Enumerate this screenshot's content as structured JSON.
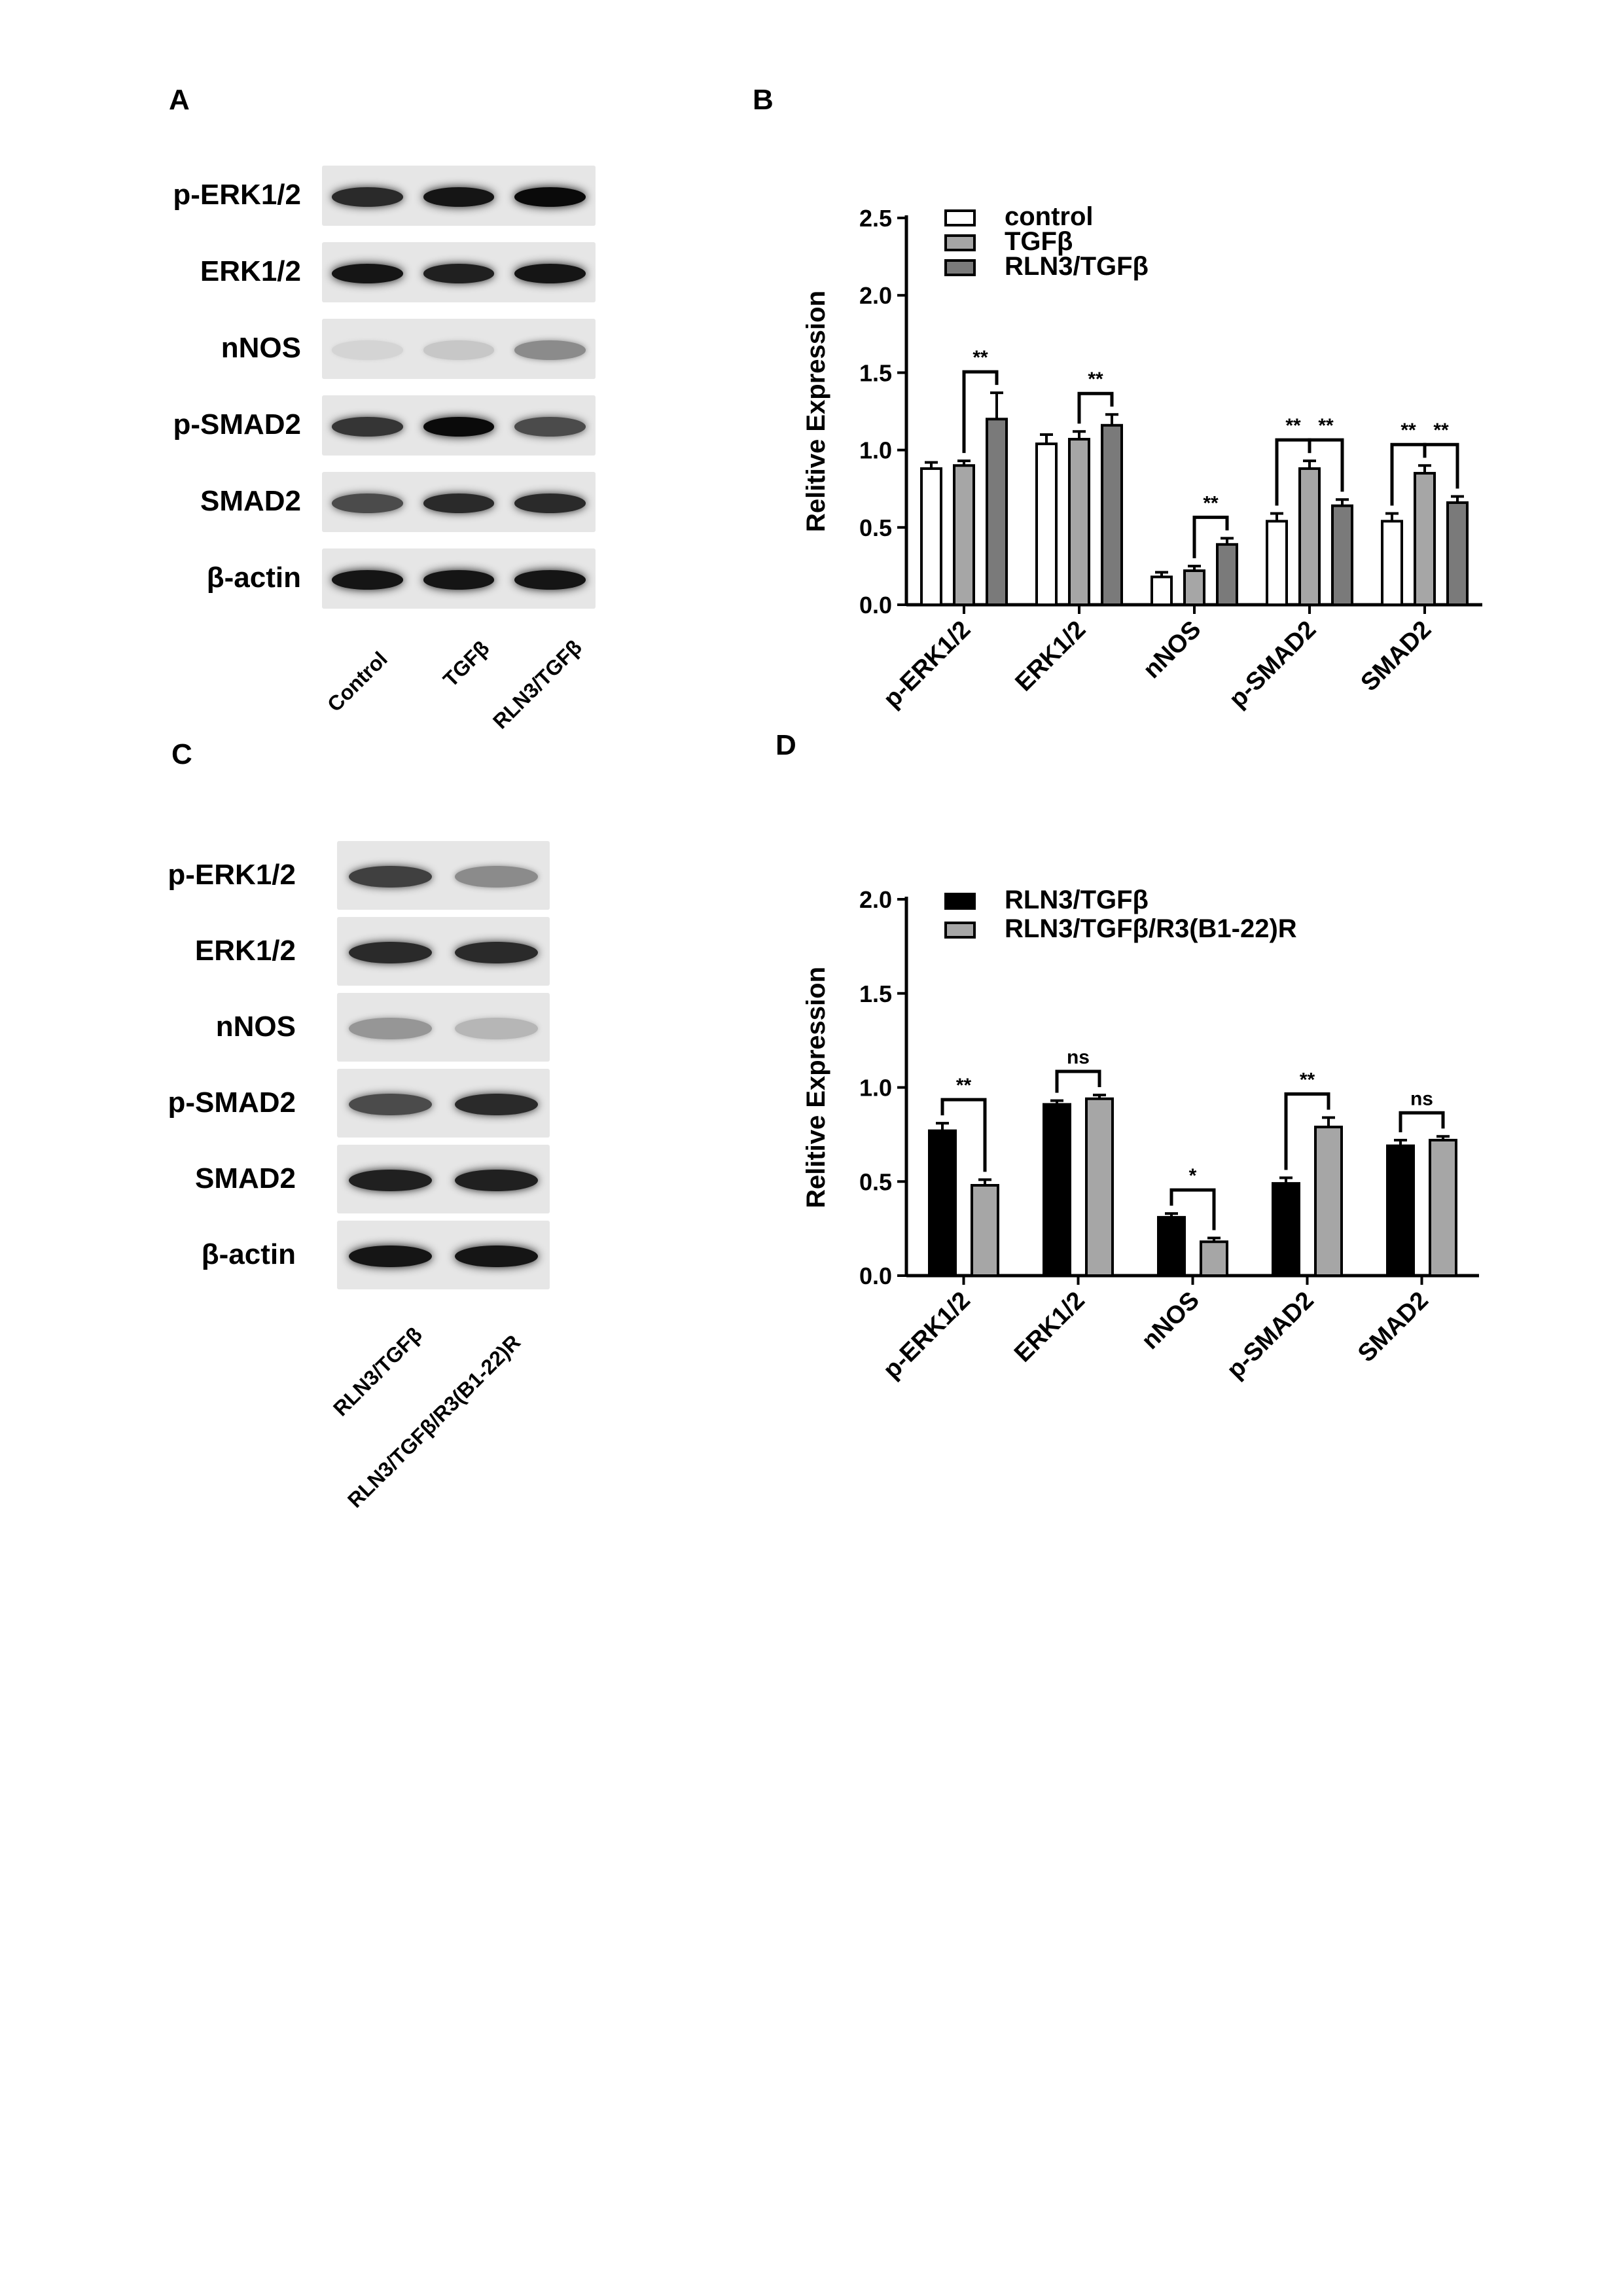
{
  "panels": {
    "A": {
      "letter": "A",
      "rows": [
        "p-ERK1/2",
        "ERK1/2",
        "nNOS",
        "p-SMAD2",
        "SMAD2",
        "β-actin"
      ],
      "lanes": [
        "Control",
        "TGFβ",
        "RLN3/TGFβ"
      ],
      "band_intensity": [
        [
          0.85,
          0.95,
          1.0
        ],
        [
          0.95,
          0.9,
          0.95
        ],
        [
          0.06,
          0.12,
          0.4
        ],
        [
          0.8,
          1.0,
          0.7
        ],
        [
          0.7,
          0.85,
          0.85
        ],
        [
          0.95,
          0.95,
          0.95
        ]
      ]
    },
    "B": {
      "letter": "B"
    },
    "C": {
      "letter": "C",
      "rows": [
        "p-ERK1/2",
        "ERK1/2",
        "nNOS",
        "p-SMAD2",
        "SMAD2",
        "β-actin"
      ],
      "lanes": [
        "RLN3/TGFβ",
        "RLN3/TGFβ/R3(B1-22)R"
      ],
      "band_intensity": [
        [
          0.75,
          0.4
        ],
        [
          0.85,
          0.85
        ],
        [
          0.35,
          0.2
        ],
        [
          0.7,
          0.85
        ],
        [
          0.9,
          0.9
        ],
        [
          0.95,
          0.95
        ]
      ]
    },
    "D": {
      "letter": "D"
    }
  },
  "chart_data": [
    {
      "type": "bar",
      "panel": "B",
      "ylabel": "Relitive Expression",
      "ylim": [
        0,
        2.5
      ],
      "yticks": [
        "0.0",
        "0.5",
        "1.0",
        "1.5",
        "2.0",
        "2.5"
      ],
      "categories": [
        "p-ERK1/2",
        "ERK1/2",
        "nNOS",
        "p-SMAD2",
        "SMAD2"
      ],
      "legend_position": "top-left",
      "series": [
        {
          "name": "control",
          "values": [
            0.88,
            1.04,
            0.18,
            0.54,
            0.54
          ],
          "errors": [
            0.04,
            0.06,
            0.03,
            0.05,
            0.05
          ],
          "fill": "#ffffff"
        },
        {
          "name": "TGFβ",
          "values": [
            0.9,
            1.07,
            0.22,
            0.88,
            0.85
          ],
          "errors": [
            0.03,
            0.05,
            0.03,
            0.05,
            0.05
          ],
          "fill": "#a6a6a6"
        },
        {
          "name": "RLN3/TGFβ",
          "values": [
            1.2,
            1.16,
            0.39,
            0.64,
            0.66
          ],
          "errors": [
            0.17,
            0.07,
            0.04,
            0.04,
            0.04
          ],
          "fill": "#7a7a7a"
        }
      ],
      "significance": [
        {
          "category": 0,
          "from": 1,
          "to": 2,
          "label": "**"
        },
        {
          "category": 1,
          "from": 1,
          "to": 2,
          "label": "**"
        },
        {
          "category": 2,
          "from": 1,
          "to": 2,
          "label": "**"
        },
        {
          "category": 3,
          "from": 0,
          "to": 1,
          "label": "**"
        },
        {
          "category": 3,
          "from": 1,
          "to": 2,
          "label": "**"
        },
        {
          "category": 4,
          "from": 0,
          "to": 1,
          "label": "**"
        },
        {
          "category": 4,
          "from": 1,
          "to": 2,
          "label": "**"
        }
      ]
    },
    {
      "type": "bar",
      "panel": "D",
      "ylabel": "Relitive Expression",
      "ylim": [
        0,
        2.0
      ],
      "yticks": [
        "0.0",
        "0.5",
        "1.0",
        "1.5",
        "2.0"
      ],
      "categories": [
        "p-ERK1/2",
        "ERK1/2",
        "nNOS",
        "p-SMAD2",
        "SMAD2"
      ],
      "legend_position": "top-left",
      "series": [
        {
          "name": "RLN3/TGFβ",
          "values": [
            0.77,
            0.91,
            0.31,
            0.49,
            0.69
          ],
          "errors": [
            0.04,
            0.02,
            0.02,
            0.03,
            0.03
          ],
          "fill": "#000000"
        },
        {
          "name": "RLN3/TGFβ/R3(B1-22)R",
          "values": [
            0.48,
            0.94,
            0.18,
            0.79,
            0.72
          ],
          "errors": [
            0.03,
            0.02,
            0.02,
            0.05,
            0.02
          ],
          "fill": "#a6a6a6"
        }
      ],
      "significance": [
        {
          "category": 0,
          "from": 0,
          "to": 1,
          "label": "**"
        },
        {
          "category": 1,
          "from": 0,
          "to": 1,
          "label": "ns"
        },
        {
          "category": 2,
          "from": 0,
          "to": 1,
          "label": "*"
        },
        {
          "category": 3,
          "from": 0,
          "to": 1,
          "label": "**"
        },
        {
          "category": 4,
          "from": 0,
          "to": 1,
          "label": "ns"
        }
      ]
    }
  ]
}
